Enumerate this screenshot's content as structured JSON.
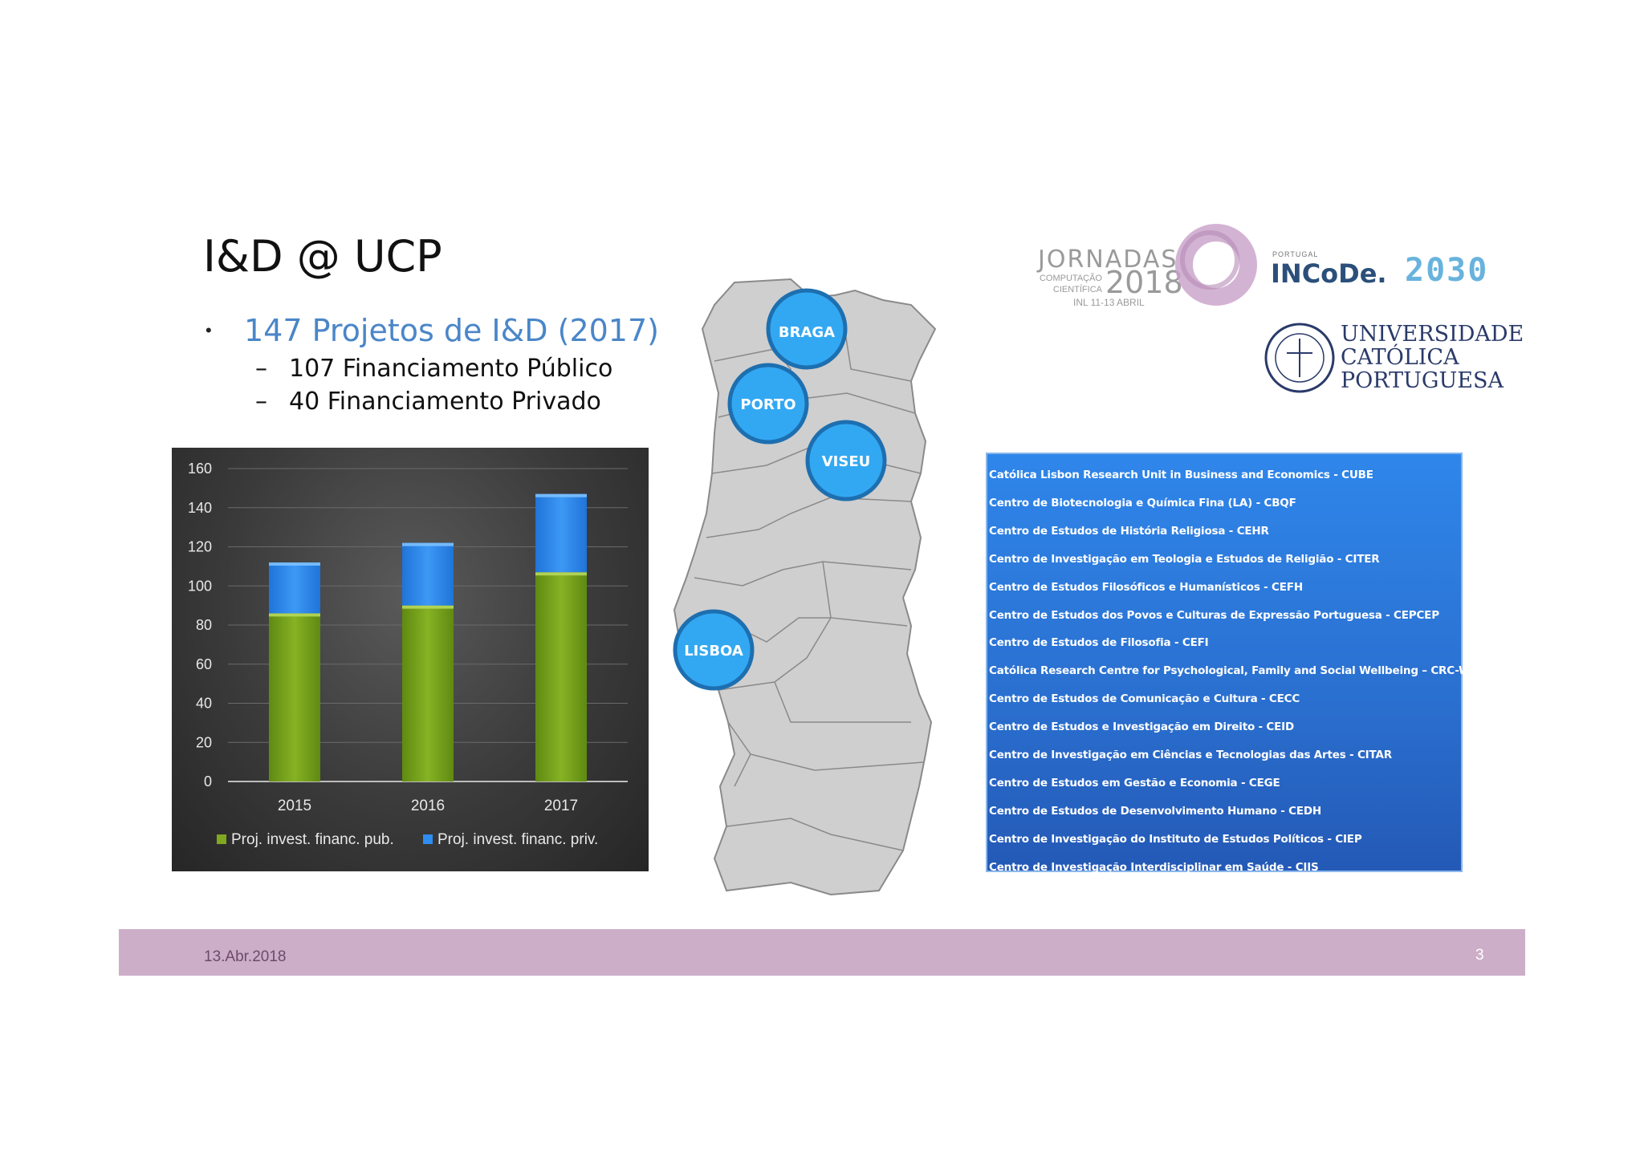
{
  "slide": {
    "title": "I&D @ UCP",
    "bullet_main": "147 Projetos de I&D (2017)",
    "bullet_dot": "•",
    "sub_dash": "–",
    "sub_bullets": [
      "107 Financiamento Público",
      "40 Financiamento Privado"
    ]
  },
  "chart_data": {
    "type": "bar",
    "stacked": true,
    "categories": [
      "2015",
      "2016",
      "2017"
    ],
    "series": [
      {
        "name": "Proj. invest. financ. pub.",
        "values": [
          86,
          90,
          107
        ],
        "color": "#7fa820"
      },
      {
        "name": "Proj. invest. financ. priv.",
        "values": [
          26,
          32,
          40
        ],
        "color": "#2f8cf0"
      }
    ],
    "ylim": [
      0,
      160
    ],
    "yticks": [
      "0",
      "20",
      "40",
      "60",
      "80",
      "100",
      "120",
      "140",
      "160"
    ],
    "grid": true,
    "legend": "bottom"
  },
  "map": {
    "cities": [
      "BRAGA",
      "PORTO",
      "VISEU",
      "LISBOA"
    ],
    "marker_color": "#33a8f2"
  },
  "logos": {
    "jornadas_word": "JORNADAS",
    "jornadas_small": "COMPUTAÇÃO CIENTÍFICA",
    "jornadas_year": "2018",
    "jornadas_date": "INL 11-13 ABRIL",
    "incode_small": "PORTUGAL",
    "incode_word": "INCoDe.",
    "incode_year": "2030",
    "ucp_lines": [
      "UNIVERSIDADE",
      "CATÓLICA",
      "PORTUGUESA"
    ]
  },
  "research_centers": [
    "Católica Lisbon Research Unit in Business and Economics - CUBE",
    "Centro de Biotecnologia e Química Fina (LA) - CBQF",
    "Centro de Estudos de História Religiosa - CEHR",
    "Centro de Investigação em Teologia e Estudos de Religião - CITER",
    "Centro de Estudos Filosóficos e Humanísticos - CEFH",
    "Centro de Estudos dos Povos e Culturas de Expressão Portuguesa - CEPCEP",
    "Centro de Estudos de Filosofia - CEFI",
    "Católica Research Centre for Psychological, Family and Social Wellbeing – CRC-W",
    "Centro de Estudos de Comunicação e Cultura - CECC",
    "Centro de Estudos e Investigação em Direito - CEID",
    "Centro de Investigação em Ciências e Tecnologias das Artes - CITAR",
    "Centro de Estudos em Gestão e Economia - CEGE",
    "Centro de Estudos de Desenvolvimento Humano - CEDH",
    "Centro de Investigação do Instituto de Estudos Políticos - CIEP",
    "Centro de Investigação Interdisciplinar em Saúde  - CIIS"
  ],
  "footer": {
    "date": "13.Abr.2018",
    "page": "3",
    "band_color": "#cdaec9"
  }
}
